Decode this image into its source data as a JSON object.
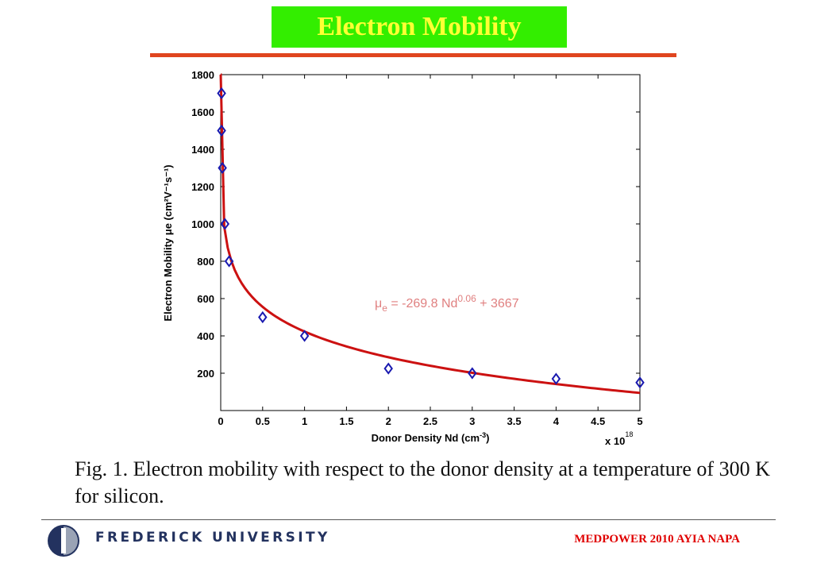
{
  "title": "Electron Mobility",
  "caption": "Fig. 1. Electron mobility with respect to the donor density at a temperature of 300 K for silicon.",
  "footer": {
    "university": "FREDERICK UNIVERSITY",
    "conference": "MEDPOWER 2010 AYIA NAPA"
  },
  "colors": {
    "title_bg": "#33ee00",
    "title_text": "#ffff33",
    "rule": "#e0451f",
    "fit_line": "#cc1111",
    "markers": "#1a1ab0",
    "equation": "#e08080",
    "conference": "#e00000",
    "university": "#23325f"
  },
  "chart_data": {
    "type": "scatter",
    "xlabel_main": "Donor Density Nd (cm",
    "xlabel_sup": "-3",
    "xlabel_end": ")",
    "ylabel": "Electron Mobility μe (cm²V⁻¹s⁻¹)",
    "x_multiplier": "x 10",
    "x_multiplier_exp": "18",
    "xlim": [
      0,
      5
    ],
    "ylim": [
      0,
      1800
    ],
    "xticks": [
      "0",
      "0.5",
      "1",
      "1.5",
      "2",
      "2.5",
      "3",
      "3.5",
      "4",
      "4.5",
      "5"
    ],
    "yticks": [
      "200",
      "400",
      "600",
      "800",
      "1000",
      "1200",
      "1400",
      "1600",
      "1800"
    ],
    "equation": {
      "lhs": "μ",
      "lhs_sub": "e",
      "mid": " = -269.8 Nd",
      "exp": "0.06",
      "rhs": " + 3667"
    },
    "points": [
      {
        "x": 0.01,
        "y": 1700
      },
      {
        "x": 0.01,
        "y": 1500
      },
      {
        "x": 0.02,
        "y": 1300
      },
      {
        "x": 0.05,
        "y": 1000
      },
      {
        "x": 0.1,
        "y": 800
      },
      {
        "x": 0.5,
        "y": 500
      },
      {
        "x": 1,
        "y": 400
      },
      {
        "x": 2,
        "y": 225
      },
      {
        "x": 3,
        "y": 200
      },
      {
        "x": 4,
        "y": 170
      },
      {
        "x": 5,
        "y": 150
      }
    ]
  }
}
